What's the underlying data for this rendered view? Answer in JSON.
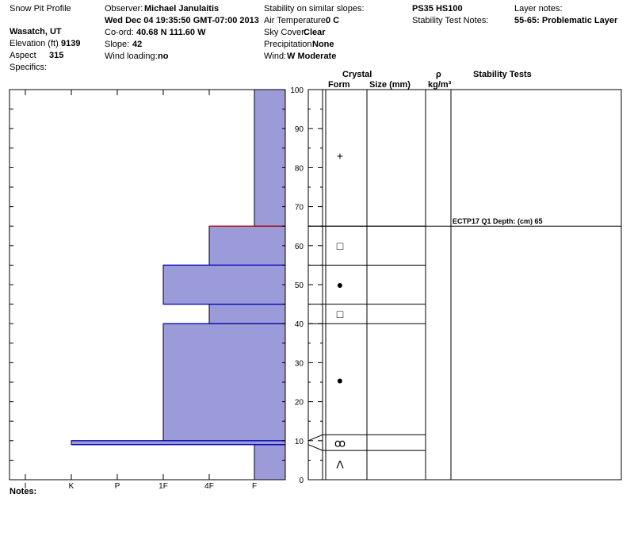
{
  "header": {
    "title": "Snow Pit Profile",
    "location": "Wasatch, UT",
    "elevation_label": "Elevation (ft)",
    "elevation_value": "9139",
    "aspect_label": "Aspect",
    "aspect_value": "315",
    "specifics_label": "Specifics:",
    "observer_label": "Observer:",
    "observer_value": "Michael Janulaitis",
    "datetime": "Wed Dec 04 19:35:50 GMT-07:00 2013",
    "coord_label": "Co-ord:",
    "coord_value": "40.68 N 111.60 W",
    "slope_label": "Slope:",
    "slope_value": "42",
    "wind_loading_label": "Wind loading:",
    "wind_loading_value": "no",
    "stability_label": "Stability on similar slopes:",
    "air_temp_label": "Air Temperature:",
    "air_temp_value": "0 C",
    "sky_label": "Sky Cover:",
    "sky_value": "Clear",
    "precip_label": "Precipitation:",
    "precip_value": "None",
    "wind_label": "Wind:",
    "wind_value": "W Moderate",
    "pit_code": "PS35 HS100",
    "stability_notes_label": "Stability Test Notes:",
    "layer_notes_label": "Layer notes:",
    "layer_notes_value": "55-65: Problematic Layer"
  },
  "columns": {
    "crystal": "Crystal",
    "form": "Form",
    "size": "Size (mm)",
    "rho": "ρ",
    "density_unit": "kg/m³",
    "stability_tests": "Stability Tests"
  },
  "notes_label": "Notes:",
  "colors": {
    "fill": "#9b9bd9",
    "layer_line": "#0000cc",
    "problem_line": "#cc0000"
  },
  "chart_data": {
    "type": "bar",
    "orientation": "horizontal",
    "hardness_scale": [
      "I",
      "K",
      "P",
      "1F",
      "4F",
      "F"
    ],
    "height_axis": {
      "min": 0,
      "max": 100,
      "ticks": [
        0,
        10,
        20,
        30,
        40,
        50,
        60,
        70,
        80,
        90,
        100
      ]
    },
    "hardness_layers": [
      {
        "bottom": 0,
        "top": 9,
        "hardness": "F"
      },
      {
        "bottom": 9,
        "top": 10,
        "hardness": "K"
      },
      {
        "bottom": 10,
        "top": 40,
        "hardness": "1F"
      },
      {
        "bottom": 40,
        "top": 45,
        "hardness": "4F"
      },
      {
        "bottom": 45,
        "top": 55,
        "hardness": "1F"
      },
      {
        "bottom": 55,
        "top": 65,
        "hardness": "4F"
      },
      {
        "bottom": 65,
        "top": 100,
        "hardness": "F"
      }
    ],
    "layer_lines": [
      9,
      10,
      40,
      45,
      55,
      65
    ],
    "problem_layer": 65,
    "grain_boundaries": [
      7.5,
      11.5,
      40,
      45,
      55,
      65
    ],
    "crystal_forms": [
      {
        "height": 83,
        "symbol": "+"
      },
      {
        "height": 60,
        "symbol": "□"
      },
      {
        "height": 50,
        "symbol": "●"
      },
      {
        "height": 42.5,
        "symbol": "□"
      },
      {
        "height": 25.5,
        "symbol": "●"
      },
      {
        "height": 9.5,
        "symbol": "ꝏ"
      },
      {
        "height": 4,
        "symbol": "Λ"
      }
    ],
    "stability_tests": [
      {
        "height": 65,
        "label": "ECTP17 Q1 Depth: (cm) 65"
      }
    ]
  }
}
